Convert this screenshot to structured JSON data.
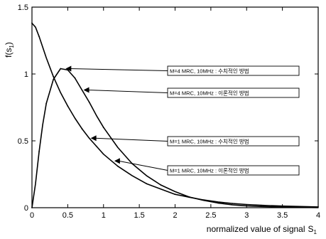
{
  "chart_data": {
    "type": "line",
    "title": "",
    "xlabel": "normalized value of signal",
    "xlabel_symbol": "S",
    "xlabel_subscript": "1",
    "ylabel": "f(s",
    "ylabel_subscript": "1",
    "ylabel_close": ")",
    "xlim": [
      0,
      4
    ],
    "ylim": [
      0,
      1.5
    ],
    "x_ticks": [
      "0",
      "0.5",
      "1",
      "1.5",
      "2",
      "2.5",
      "3",
      "3.5",
      "4"
    ],
    "y_ticks": [
      "0",
      "0.5",
      "1",
      "1.5"
    ],
    "grid": false,
    "series": [
      {
        "x": [
          0,
          0.05,
          0.1,
          0.15,
          0.2,
          0.3,
          0.4,
          0.5,
          0.6,
          0.7,
          0.8,
          0.9,
          1.0,
          1.2,
          1.4,
          1.6,
          1.8,
          2.0,
          2.2,
          2.4,
          2.6,
          2.8,
          3.0,
          3.2,
          3.5,
          4.0
        ],
        "y": [
          0,
          0.18,
          0.42,
          0.62,
          0.78,
          0.96,
          1.04,
          1.03,
          0.97,
          0.88,
          0.79,
          0.69,
          0.6,
          0.45,
          0.33,
          0.24,
          0.17,
          0.12,
          0.08,
          0.055,
          0.035,
          0.022,
          0.014,
          0.009,
          0.004,
          0.001
        ]
      },
      {
        "x": [
          0,
          0.05,
          0.1,
          0.2,
          0.3,
          0.4,
          0.5,
          0.6,
          0.7,
          0.8,
          0.9,
          1.0,
          1.2,
          1.4,
          1.6,
          1.8,
          2.0,
          2.2,
          2.4,
          2.6,
          2.8,
          3.0,
          3.2,
          3.5,
          4.0
        ],
        "y": [
          1.38,
          1.35,
          1.28,
          1.12,
          0.98,
          0.86,
          0.76,
          0.67,
          0.59,
          0.52,
          0.46,
          0.4,
          0.31,
          0.24,
          0.18,
          0.14,
          0.1,
          0.078,
          0.058,
          0.043,
          0.032,
          0.024,
          0.018,
          0.012,
          0.006
        ]
      }
    ],
    "annotations": [
      {
        "text": "M=4 MRC, 10MHz : 수치적인 방법",
        "arrow_to": [
          0.47,
          1.04
        ]
      },
      {
        "text": "M=4 MRC, 10MHz : 이론적인 방법",
        "arrow_to": [
          0.72,
          0.88
        ]
      },
      {
        "text": "M=1 MRC, 10MHz : 수치적인 방법",
        "arrow_to": [
          0.82,
          0.52
        ]
      },
      {
        "text": "M=1 MRC, 10MHz : 이론적인 방법",
        "arrow_to": [
          1.15,
          0.35
        ]
      }
    ]
  }
}
